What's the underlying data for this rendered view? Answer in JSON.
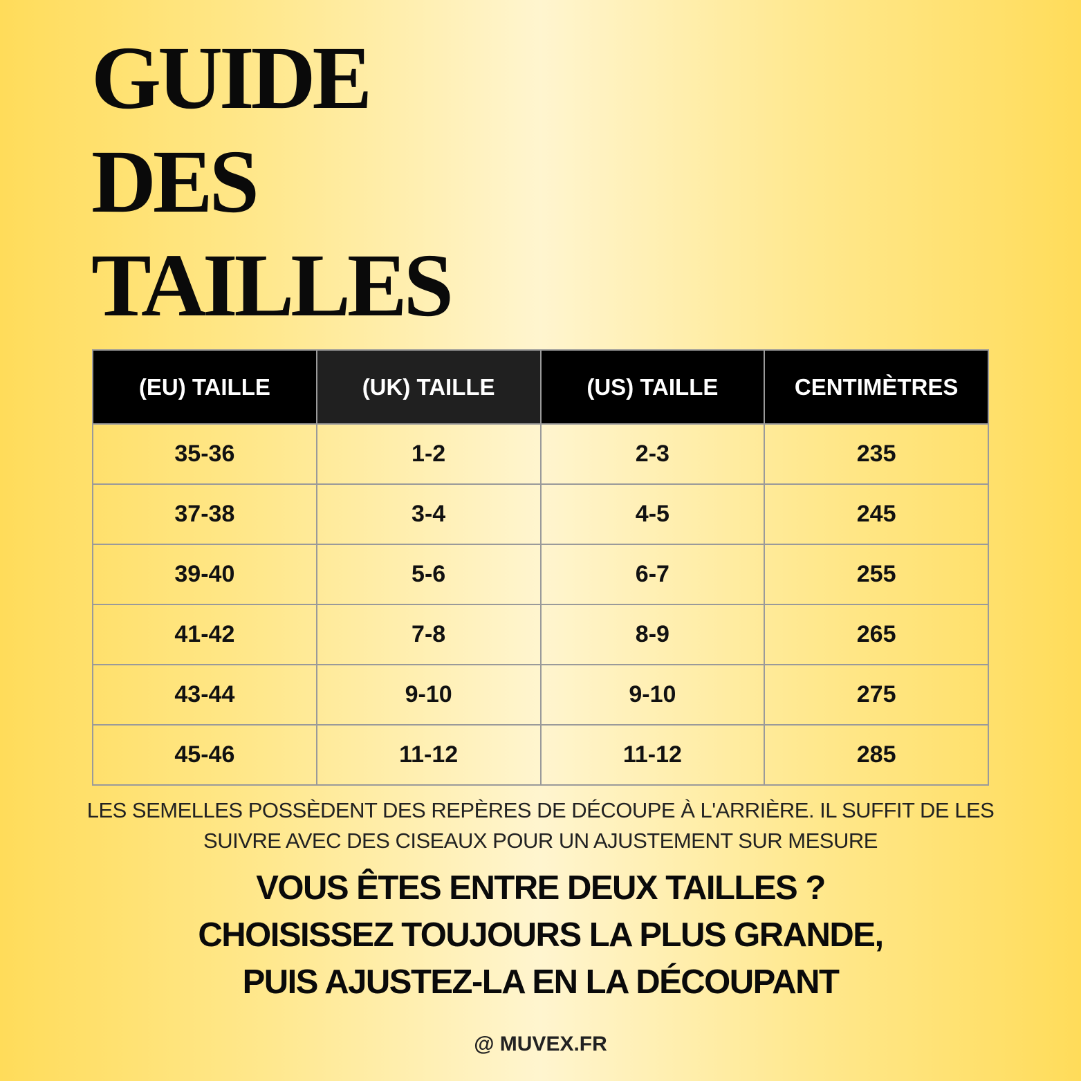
{
  "title": [
    "GUIDE",
    "DES",
    "TAILLES"
  ],
  "table": {
    "headers": [
      "(EU) TAILLE",
      "(UK) TAILLE",
      "(US) TAILLE",
      "CENTIMÈTRES"
    ],
    "rows": [
      [
        "35-36",
        "1-2",
        "2-3",
        "235"
      ],
      [
        "37-38",
        "3-4",
        "4-5",
        "245"
      ],
      [
        "39-40",
        "5-6",
        "6-7",
        "255"
      ],
      [
        "41-42",
        "7-8",
        "8-9",
        "265"
      ],
      [
        "43-44",
        "9-10",
        "9-10",
        "275"
      ],
      [
        "45-46",
        "11-12",
        "11-12",
        "285"
      ]
    ]
  },
  "caption": [
    "LES SEMELLES POSSÈDENT DES REPÈRES DE DÉCOUPE À L'ARRIÈRE. IL SUFFIT DE LES",
    "SUIVRE AVEC DES CISEAUX POUR UN AJUSTEMENT SUR MESURE"
  ],
  "cta": [
    "VOUS ÊTES ENTRE DEUX TAILLES ?",
    "CHOISISSEZ TOUJOURS LA PLUS GRANDE,",
    "PUIS AJUSTEZ-LA EN LA DÉCOUPANT"
  ],
  "handle": "@ MUVEX.FR",
  "colors": {
    "background_edge": "#FFDC5A",
    "background_center": "#FFF5CF",
    "header": "#000000"
  }
}
